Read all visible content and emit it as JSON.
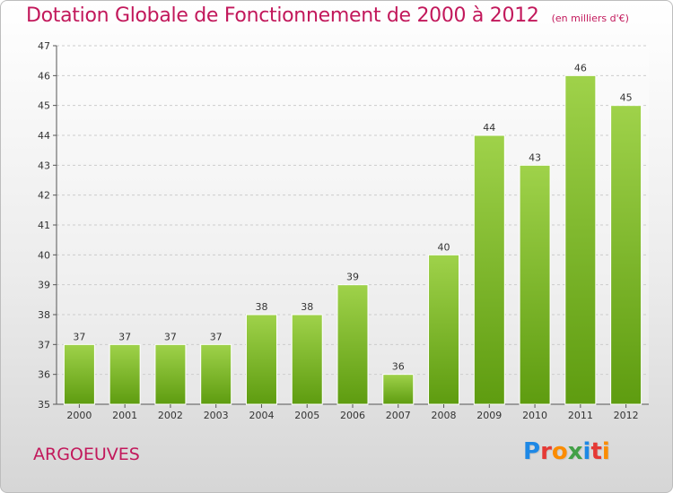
{
  "title": "Dotation Globale de Fonctionnement de 2000 à 2012",
  "subtitle": "(en milliers d'€)",
  "commune": "ARGOEUVES",
  "logo": {
    "text": "Proxiti",
    "letters": [
      {
        "ch": "P",
        "color": "#1e88e5"
      },
      {
        "ch": "r",
        "color": "#e53935"
      },
      {
        "ch": "o",
        "color": "#fb8c00"
      },
      {
        "ch": "x",
        "color": "#43a047"
      },
      {
        "ch": "i",
        "color": "#1e88e5"
      },
      {
        "ch": "t",
        "color": "#e53935"
      },
      {
        "ch": "i",
        "color": "#fb8c00"
      }
    ]
  },
  "colors": {
    "bar_light": "#9fd24a",
    "bar_dark": "#5e9c10",
    "title": "#c2185b",
    "grid": "#cccccc"
  },
  "chart_data": {
    "type": "bar",
    "categories": [
      "2000",
      "2001",
      "2002",
      "2003",
      "2004",
      "2005",
      "2006",
      "2007",
      "2008",
      "2009",
      "2010",
      "2011",
      "2012"
    ],
    "values": [
      37,
      37,
      37,
      37,
      38,
      38,
      39,
      36,
      40,
      44,
      43,
      46,
      45
    ],
    "ylim": [
      35,
      47
    ],
    "yticks": [
      35,
      36,
      37,
      38,
      39,
      40,
      41,
      42,
      43,
      44,
      45,
      46,
      47
    ],
    "grid": true,
    "legend": "none"
  }
}
